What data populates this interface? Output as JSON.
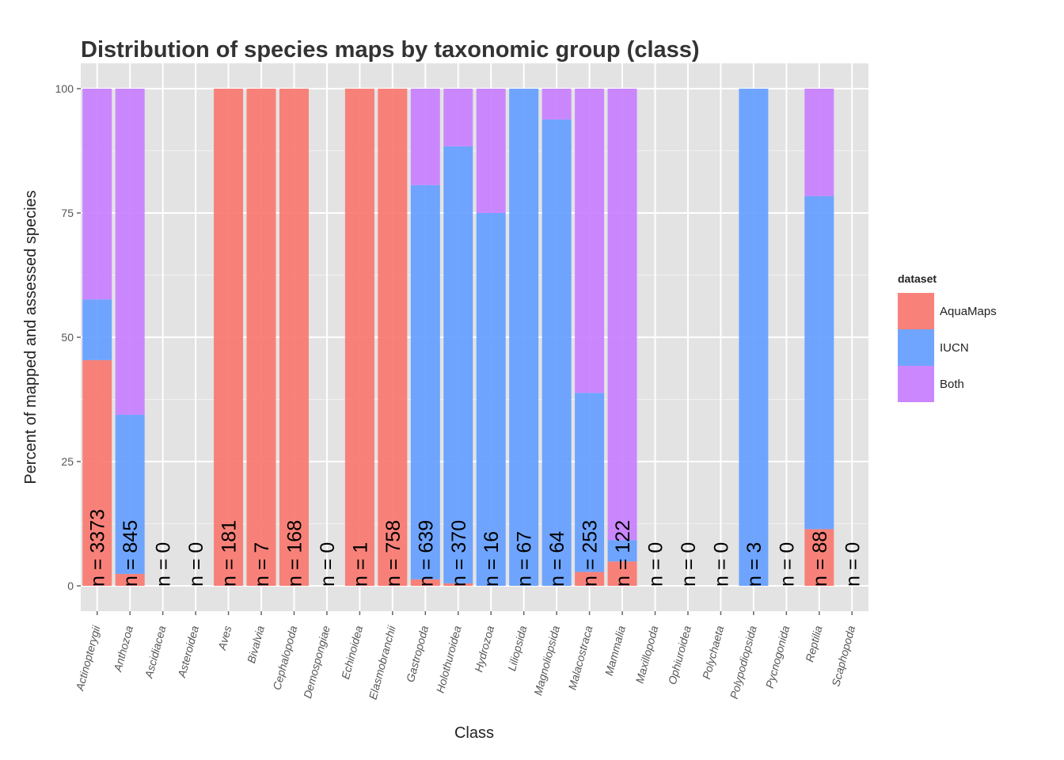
{
  "chart_data": {
    "type": "bar",
    "stacked": true,
    "title": "Distribution of species maps by taxonomic group (class)",
    "xlabel": "Class",
    "ylabel": "Percent of mapped and assessed species",
    "ylim": [
      0,
      100
    ],
    "yticks": [
      0,
      25,
      50,
      75,
      100
    ],
    "grid": true,
    "legend": {
      "title": "dataset",
      "placement": "right"
    },
    "categories": [
      "Actinopterygii",
      "Anthozoa",
      "Ascidiacea",
      "Asteroidea",
      "Aves",
      "Bivalvia",
      "Cephalopoda",
      "Demospongiae",
      "Echinoidea",
      "Elasmobranchii",
      "Gastropoda",
      "Holothuroidea",
      "Hydrozoa",
      "Liliopsida",
      "Magnoliopsida",
      "Malacostraca",
      "Mammalia",
      "Maxillopoda",
      "Ophiuroidea",
      "Polychaeta",
      "Polypodiopsida",
      "Pycnogonida",
      "Reptilia",
      "Scaphopoda"
    ],
    "series": [
      {
        "name": "AquaMaps",
        "color": "#F8766D",
        "values": [
          45.4,
          2.4,
          0,
          0,
          100,
          100,
          100,
          0,
          100,
          100,
          1.3,
          0.5,
          0,
          0,
          0,
          2.8,
          4.9,
          0,
          0,
          0,
          0,
          0,
          11.4,
          0
        ]
      },
      {
        "name": "IUCN",
        "color": "#619CFF",
        "values": [
          12.2,
          32.0,
          0,
          0,
          0,
          0,
          0,
          0,
          0,
          0,
          79.3,
          87.9,
          75.0,
          100,
          93.8,
          36.0,
          4.3,
          0,
          0,
          0,
          100,
          0,
          67.0,
          0
        ]
      },
      {
        "name": "Both",
        "color": "#C77CFF",
        "values": [
          42.4,
          65.6,
          0,
          0,
          0,
          0,
          0,
          0,
          0,
          0,
          19.4,
          11.6,
          25.0,
          0,
          6.2,
          61.2,
          90.8,
          0,
          0,
          0,
          0,
          0,
          21.6,
          0
        ]
      }
    ],
    "labels": [
      "n = 3373",
      "n = 845",
      "n = 0",
      "n = 0",
      "n = 181",
      "n = 7",
      "n = 168",
      "n = 0",
      "n = 1",
      "n = 758",
      "n = 639",
      "n = 370",
      "n = 16",
      "n = 67",
      "n = 64",
      "n = 253",
      "n = 122",
      "n = 0",
      "n = 0",
      "n = 0",
      "n = 3",
      "n = 0",
      "n = 88",
      "n = 0"
    ]
  }
}
